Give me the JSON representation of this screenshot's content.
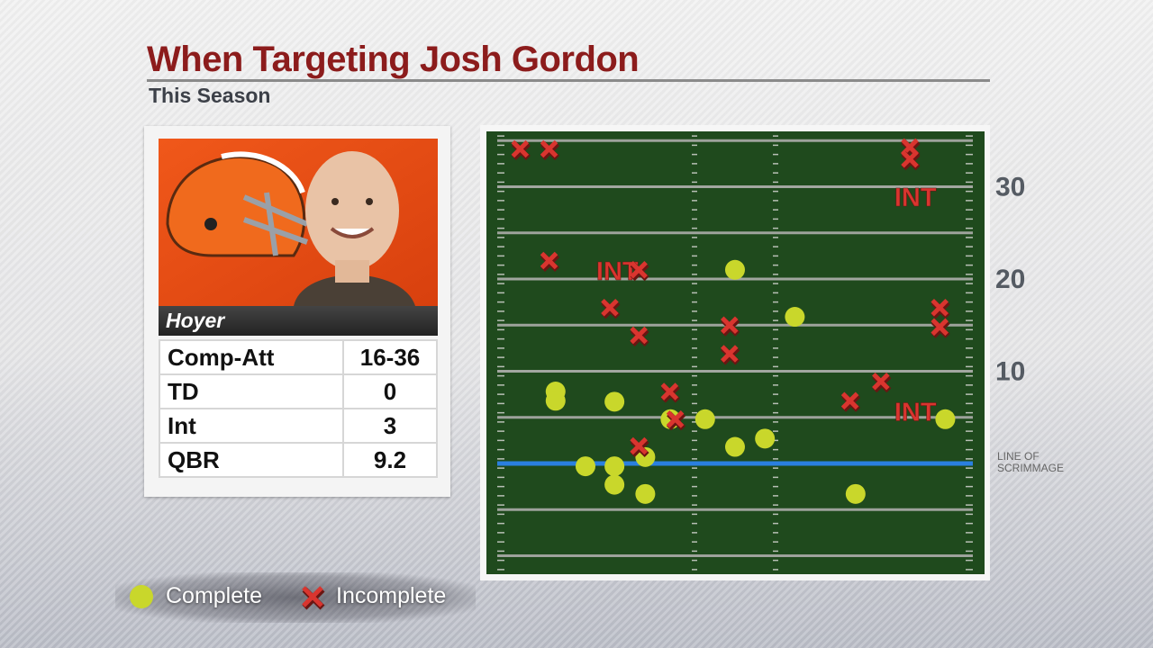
{
  "header": {
    "title": "When Targeting Josh Gordon",
    "subtitle": "This Season"
  },
  "player": {
    "name": "Hoyer",
    "stats": [
      [
        "Comp-Att",
        "16-36"
      ],
      [
        "TD",
        0
      ],
      [
        "Int",
        3
      ],
      [
        "QBR",
        9.2
      ]
    ]
  },
  "chart_data": {
    "type": "scatter",
    "xlim": [
      0,
      53.3
    ],
    "ylim": [
      -12,
      36
    ],
    "yticks": [
      {
        "value": 0,
        "label": "LINE OF SCRIMMAGE"
      },
      10,
      20,
      30
    ],
    "series": [
      {
        "name": "Complete",
        "color": "#c9d72b",
        "marker": "circle",
        "x": [
          7.4,
          7.4,
          13.7,
          19.7,
          23.4,
          26.6,
          33.0,
          29.8,
          26.6,
          10.6,
          13.7,
          17.0,
          13.7,
          17.0,
          39.5,
          49.1
        ],
        "y": [
          7.8,
          6.8,
          6.7,
          4.8,
          4.8,
          21.0,
          15.9,
          2.7,
          1.8,
          -0.3,
          -0.3,
          0.7,
          -2.3,
          -3.3,
          -3.3,
          4.8
        ]
      },
      {
        "name": "Incomplete",
        "color": "#d9352f",
        "marker": "x",
        "x": [
          3.6,
          6.7,
          45.3,
          45.3,
          6.7,
          16.3,
          13.2,
          16.3,
          26.0,
          26.0,
          19.6,
          20.2,
          16.3,
          38.9,
          42.2,
          48.5,
          48.5
        ],
        "y": [
          34.1,
          34.1,
          34.3,
          33.0,
          22.0,
          21.0,
          16.9,
          13.9,
          15.0,
          11.9,
          7.8,
          4.8,
          1.9,
          6.8,
          8.9,
          16.9,
          14.8
        ]
      }
    ],
    "annotations": [
      {
        "text": "INT",
        "x": 45.9,
        "y": 29.0
      },
      {
        "text": "INT",
        "x": 14.0,
        "y": 21.0
      },
      {
        "text": "INT",
        "x": 45.9,
        "y": 5.7
      }
    ]
  }
}
